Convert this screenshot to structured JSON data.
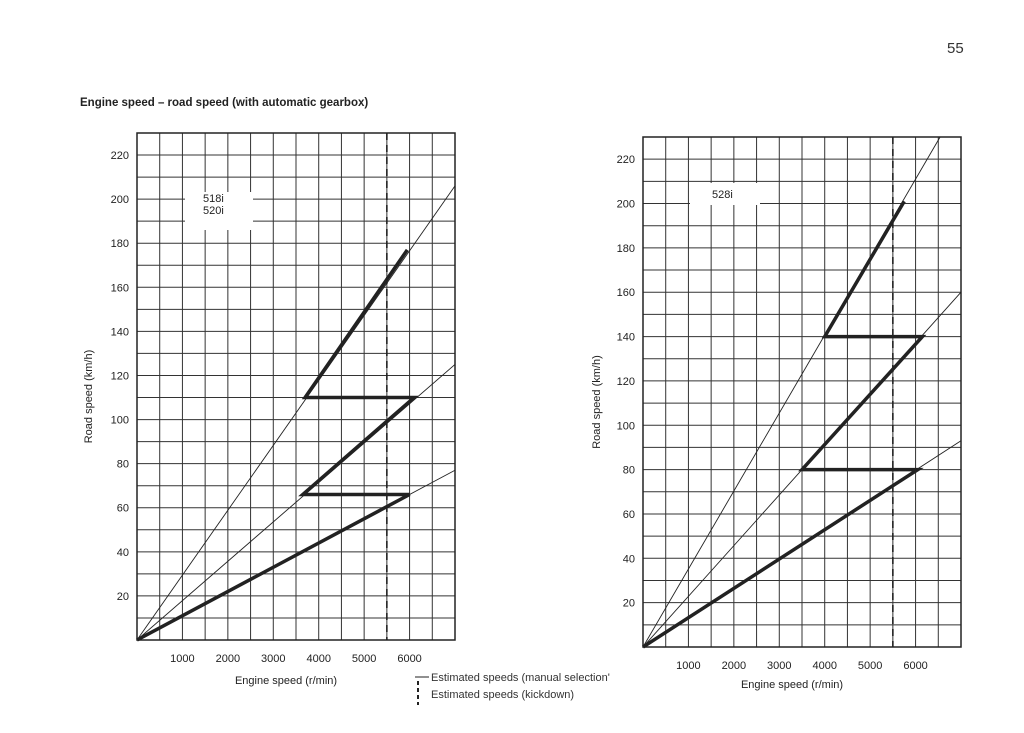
{
  "page_number": "55",
  "title": "Engine speed – road speed (with automatic gearbox)",
  "legend": {
    "manual": "Estimated speeds (manual selection'",
    "kickdown": "Estimated speeds (kickdown)"
  },
  "colors": {
    "ink": "#222222",
    "paper": "#ffffff"
  },
  "chart_data": [
    {
      "type": "line",
      "label": [
        "518i",
        "520i"
      ],
      "xlabel": "Engine speed (r/min)",
      "ylabel": "Road speed (km/h)",
      "xlim": [
        0,
        7000
      ],
      "ylim": [
        0,
        230
      ],
      "xticks": [
        1000,
        2000,
        3000,
        4000,
        5000,
        6000
      ],
      "yticks": [
        20,
        40,
        60,
        80,
        100,
        120,
        140,
        160,
        180,
        200,
        220
      ],
      "grid": {
        "x_step": 500,
        "y_step": 10
      },
      "ratio_lines": [
        [
          [
            0,
            0
          ],
          [
            7000,
            77
          ]
        ],
        [
          [
            0,
            0
          ],
          [
            7000,
            125
          ]
        ],
        [
          [
            0,
            0
          ],
          [
            7000,
            206
          ]
        ]
      ],
      "shift_path": [
        [
          0,
          0
        ],
        [
          6000,
          66
        ],
        [
          3650,
          66
        ],
        [
          6100,
          110
        ],
        [
          3700,
          110
        ],
        [
          5950,
          177
        ]
      ],
      "kickdown_rpm": 5500
    },
    {
      "type": "line",
      "label": [
        "528i"
      ],
      "xlabel": "Engine speed (r/min)",
      "ylabel": "Road speed (km/h)",
      "xlim": [
        0,
        7000
      ],
      "ylim": [
        0,
        230
      ],
      "xticks": [
        1000,
        2000,
        3000,
        4000,
        5000,
        6000
      ],
      "yticks": [
        20,
        40,
        60,
        80,
        100,
        120,
        140,
        160,
        180,
        200,
        220
      ],
      "grid": {
        "x_step": 500,
        "y_step": 10
      },
      "ratio_lines": [
        [
          [
            0,
            0
          ],
          [
            7000,
            93
          ]
        ],
        [
          [
            0,
            0
          ],
          [
            7000,
            160
          ]
        ],
        [
          [
            0,
            0
          ],
          [
            6540,
            230
          ]
        ]
      ],
      "shift_path": [
        [
          0,
          0
        ],
        [
          6050,
          80
        ],
        [
          3500,
          80
        ],
        [
          6150,
          140
        ],
        [
          4000,
          140
        ],
        [
          5750,
          201
        ]
      ],
      "kickdown_rpm": 5500
    }
  ]
}
